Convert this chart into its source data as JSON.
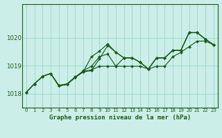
{
  "title": "Graphe pression niveau de la mer (hPa)",
  "bg_color": "#cceee8",
  "grid_color": "#99ddcc",
  "line_color": "#1a5c1a",
  "marker_color": "#1a5c1a",
  "xlim": [
    -0.5,
    23.5
  ],
  "ylim": [
    1017.5,
    1021.2
  ],
  "xticks": [
    0,
    1,
    2,
    3,
    4,
    5,
    6,
    7,
    8,
    9,
    10,
    11,
    12,
    13,
    14,
    15,
    16,
    17,
    18,
    19,
    20,
    21,
    22,
    23
  ],
  "yticks": [
    1018,
    1019,
    1020
  ],
  "series": [
    [
      1018.05,
      1018.35,
      1018.62,
      1018.72,
      1018.28,
      1018.33,
      1018.58,
      1018.78,
      1018.82,
      1019.25,
      1019.72,
      1019.48,
      1019.28,
      1019.28,
      1019.12,
      1018.88,
      1019.28,
      1019.28,
      1019.55,
      1019.55,
      1020.18,
      1020.18,
      1019.95,
      1019.75
    ],
    [
      1018.05,
      1018.35,
      1018.62,
      1018.72,
      1018.28,
      1018.33,
      1018.58,
      1018.78,
      1019.32,
      1019.52,
      1019.78,
      1019.48,
      1019.28,
      1019.28,
      1019.12,
      1018.88,
      1019.28,
      1019.28,
      1019.55,
      1019.55,
      1020.18,
      1020.18,
      1019.95,
      1019.75
    ],
    [
      1018.05,
      1018.35,
      1018.62,
      1018.72,
      1018.28,
      1018.33,
      1018.58,
      1018.82,
      1018.98,
      1019.32,
      1019.42,
      1018.98,
      1019.28,
      1019.28,
      1019.12,
      1018.88,
      1019.28,
      1019.28,
      1019.55,
      1019.55,
      1020.18,
      1020.18,
      1019.95,
      1019.75
    ],
    [
      1018.05,
      1018.35,
      1018.62,
      1018.72,
      1018.3,
      1018.35,
      1018.6,
      1018.8,
      1018.85,
      1018.98,
      1018.98,
      1018.98,
      1018.98,
      1018.98,
      1018.98,
      1018.88,
      1018.98,
      1018.98,
      1019.32,
      1019.48,
      1019.68,
      1019.88,
      1019.88,
      1019.75
    ]
  ]
}
